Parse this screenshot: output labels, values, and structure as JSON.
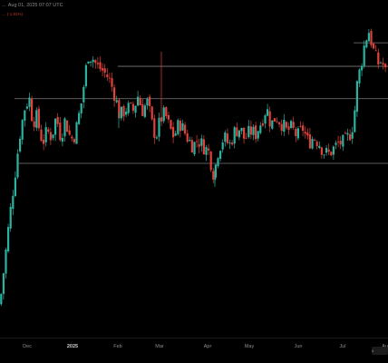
{
  "header": {
    "title": "… Aug 01, 2025 07:07 UTC",
    "change": "… (-1.91%)"
  },
  "badge": {
    "value": "4"
  },
  "colors": {
    "background": "#000000",
    "up": "#2bb3a0",
    "down": "#e0413b",
    "level_line": "#7a7a7a",
    "axis_text": "#8c8c8c"
  },
  "chart_data": {
    "type": "candlestick",
    "title": "",
    "xlabel": "",
    "ylabel": "",
    "x_ticks": [
      {
        "label": "Dec",
        "major": false
      },
      {
        "label": "2025",
        "major": true
      },
      {
        "label": "Feb",
        "major": false
      },
      {
        "label": "Mar",
        "major": false
      },
      {
        "label": "Apr",
        "major": false
      },
      {
        "label": "May",
        "major": false
      },
      {
        "label": "Jun",
        "major": false
      },
      {
        "label": "Jul",
        "major": false
      },
      {
        "label": "Au",
        "major": false
      }
    ],
    "ylim": [
      0,
      100
    ],
    "horizontal_levels": [
      91,
      83,
      72,
      50
    ],
    "anchors": [
      [
        0,
        2
      ],
      [
        10,
        30
      ],
      [
        22,
        60
      ],
      [
        28,
        70
      ],
      [
        33,
        72
      ],
      [
        36,
        64
      ],
      [
        40,
        66
      ],
      [
        47,
        57
      ],
      [
        52,
        61
      ],
      [
        57,
        59
      ],
      [
        62,
        66
      ],
      [
        67,
        59
      ],
      [
        72,
        65
      ],
      [
        78,
        58
      ],
      [
        83,
        60
      ],
      [
        90,
        71
      ],
      [
        97,
        87
      ],
      [
        102,
        86
      ],
      [
        107,
        83
      ],
      [
        112,
        82
      ],
      [
        120,
        79
      ],
      [
        127,
        73
      ],
      [
        132,
        66
      ],
      [
        140,
        69
      ],
      [
        147,
        68
      ],
      [
        152,
        73
      ],
      [
        157,
        68
      ],
      [
        163,
        71
      ],
      [
        167,
        64
      ],
      [
        172,
        59
      ],
      [
        177,
        65
      ],
      [
        182,
        67
      ],
      [
        187,
        62
      ],
      [
        192,
        59
      ],
      [
        198,
        64
      ],
      [
        203,
        61
      ],
      [
        208,
        58
      ],
      [
        213,
        56
      ],
      [
        218,
        58
      ],
      [
        224,
        56
      ],
      [
        230,
        54
      ],
      [
        236,
        46
      ],
      [
        241,
        55
      ],
      [
        247,
        59
      ],
      [
        253,
        56
      ],
      [
        259,
        61
      ],
      [
        265,
        62
      ],
      [
        270,
        58
      ],
      [
        276,
        61
      ],
      [
        282,
        60
      ],
      [
        288,
        64
      ],
      [
        294,
        69
      ],
      [
        299,
        63
      ],
      [
        304,
        66
      ],
      [
        310,
        64
      ],
      [
        316,
        61
      ],
      [
        322,
        62
      ],
      [
        328,
        59
      ],
      [
        334,
        62
      ],
      [
        340,
        57
      ],
      [
        346,
        59
      ],
      [
        352,
        57
      ],
      [
        357,
        54
      ],
      [
        362,
        53
      ],
      [
        368,
        55
      ],
      [
        374,
        57
      ],
      [
        380,
        57
      ],
      [
        386,
        60
      ],
      [
        390,
        64
      ],
      [
        394,
        77
      ],
      [
        399,
        85
      ],
      [
        403,
        92
      ],
      [
        407,
        95
      ],
      [
        410,
        91
      ],
      [
        413,
        87
      ],
      [
        417,
        84
      ],
      [
        421,
        85
      ],
      [
        425,
        81
      ],
      [
        428,
        82
      ]
    ],
    "wick_spikes": [
      [
        178,
        88
      ],
      [
        131,
        62
      ],
      [
        237,
        42
      ],
      [
        237,
        43
      ]
    ]
  }
}
